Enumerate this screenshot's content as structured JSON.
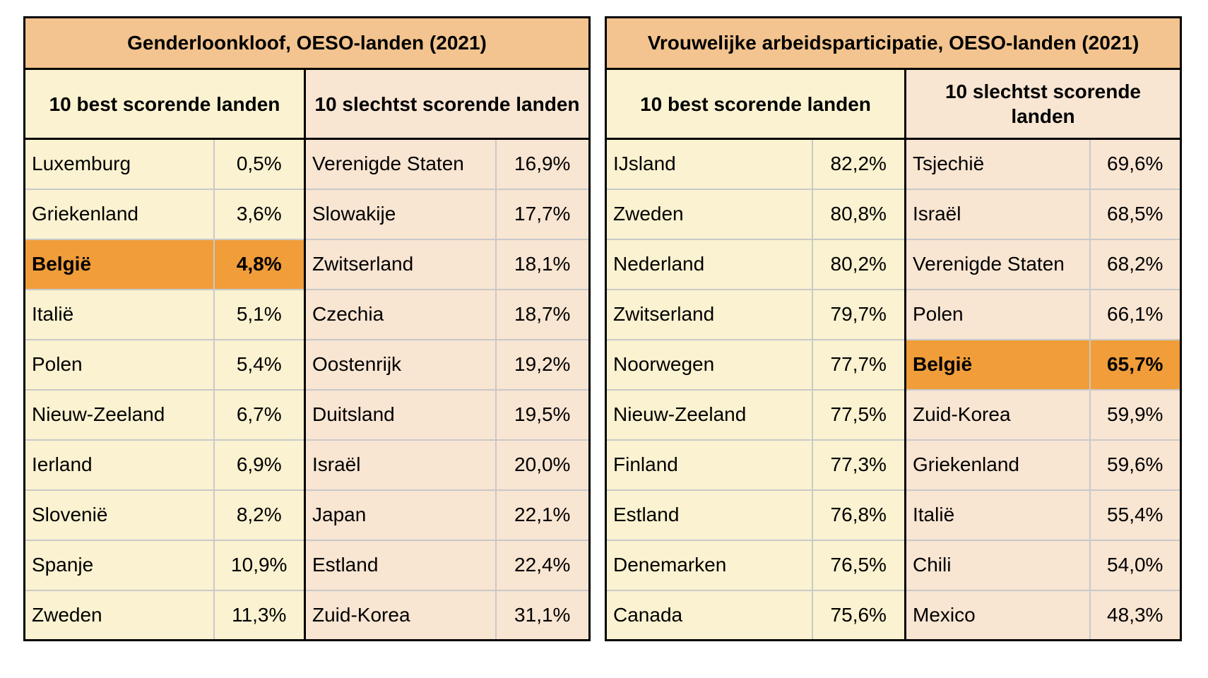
{
  "colors": {
    "header_bg": "#F3C48F",
    "best_bg": "#FAF2D0",
    "worst_bg": "#F8E5D2",
    "highlight_bg": "#F09D3A",
    "grid_line": "#C9C9C9",
    "border": "#000000"
  },
  "chart_data": [
    {
      "type": "table",
      "title": "Genderloonkloof, OESO-landen (2021)",
      "best_header": "10 best scorende landen",
      "worst_header": "10 slechtst scorende landen",
      "highlighted_country": "België",
      "best": [
        {
          "country": "Luxemburg",
          "value": "0,5%"
        },
        {
          "country": "Griekenland",
          "value": "3,6%"
        },
        {
          "country": "België",
          "value": "4,8%",
          "highlight": true
        },
        {
          "country": "Italië",
          "value": "5,1%"
        },
        {
          "country": "Polen",
          "value": "5,4%"
        },
        {
          "country": "Nieuw-Zeeland",
          "value": "6,7%"
        },
        {
          "country": "Ierland",
          "value": "6,9%"
        },
        {
          "country": "Slovenië",
          "value": "8,2%"
        },
        {
          "country": "Spanje",
          "value": "10,9%"
        },
        {
          "country": "Zweden",
          "value": "11,3%"
        }
      ],
      "worst": [
        {
          "country": "Verenigde Staten",
          "value": "16,9%"
        },
        {
          "country": "Slowakije",
          "value": "17,7%"
        },
        {
          "country": "Zwitserland",
          "value": "18,1%"
        },
        {
          "country": "Czechia",
          "value": "18,7%"
        },
        {
          "country": "Oostenrijk",
          "value": "19,2%"
        },
        {
          "country": "Duitsland",
          "value": "19,5%"
        },
        {
          "country": "Israël",
          "value": "20,0%"
        },
        {
          "country": "Japan",
          "value": "22,1%"
        },
        {
          "country": "Estland",
          "value": "22,4%"
        },
        {
          "country": "Zuid-Korea",
          "value": "31,1%"
        }
      ]
    },
    {
      "type": "table",
      "title": "Vrouwelijke arbeidsparticipatie, OESO-landen (2021)",
      "best_header": "10 best scorende landen",
      "worst_header": "10 slechtst scorende landen",
      "highlighted_country": "België",
      "best": [
        {
          "country": "IJsland",
          "value": "82,2%"
        },
        {
          "country": "Zweden",
          "value": "80,8%"
        },
        {
          "country": "Nederland",
          "value": "80,2%"
        },
        {
          "country": "Zwitserland",
          "value": "79,7%"
        },
        {
          "country": "Noorwegen",
          "value": "77,7%"
        },
        {
          "country": "Nieuw-Zeeland",
          "value": "77,5%"
        },
        {
          "country": "Finland",
          "value": "77,3%"
        },
        {
          "country": "Estland",
          "value": "76,8%"
        },
        {
          "country": "Denemarken",
          "value": "76,5%"
        },
        {
          "country": "Canada",
          "value": "75,6%"
        }
      ],
      "worst": [
        {
          "country": "Tsjechië",
          "value": "69,6%"
        },
        {
          "country": "Israël",
          "value": "68,5%"
        },
        {
          "country": "Verenigde Staten",
          "value": "68,2%"
        },
        {
          "country": "Polen",
          "value": "66,1%"
        },
        {
          "country": "België",
          "value": "65,7%",
          "highlight": true
        },
        {
          "country": "Zuid-Korea",
          "value": "59,9%"
        },
        {
          "country": "Griekenland",
          "value": "59,6%"
        },
        {
          "country": "Italië",
          "value": "55,4%"
        },
        {
          "country": "Chili",
          "value": "54,0%"
        },
        {
          "country": "Mexico",
          "value": "48,3%"
        }
      ]
    }
  ]
}
